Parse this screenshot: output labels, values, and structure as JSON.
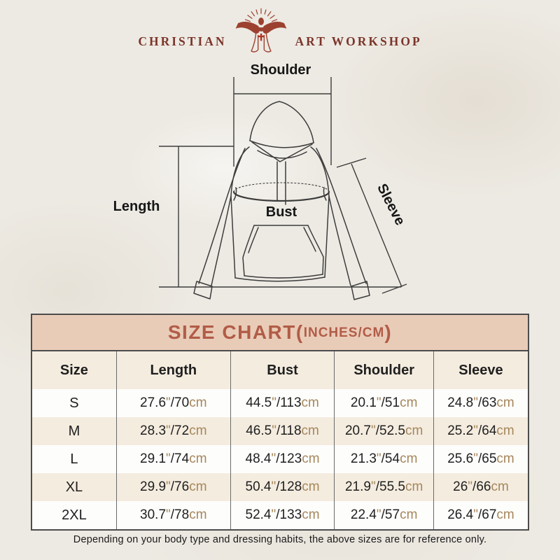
{
  "logo": {
    "left": "CHRISTIAN",
    "right": "ART WORKSHOP"
  },
  "diagram": {
    "shoulder_label": "Shoulder",
    "length_label": "Length",
    "bust_label": "Bust",
    "sleeve_label": "Sleeve"
  },
  "size_chart": {
    "title_main": "SIZE CHART(",
    "title_unit": "INCHES/CM",
    "title_close": ")",
    "columns": [
      "Size",
      "Length",
      "Bust",
      "Shoulder",
      "Sleeve"
    ],
    "unit_inch": "\"",
    "unit_cm": "cm",
    "rows": [
      {
        "size": "S",
        "length": [
          "27.6",
          "70"
        ],
        "bust": [
          "44.5",
          "113"
        ],
        "shoulder": [
          "20.1",
          "51"
        ],
        "sleeve": [
          "24.8",
          "63"
        ]
      },
      {
        "size": "M",
        "length": [
          "28.3",
          "72"
        ],
        "bust": [
          "46.5",
          "118"
        ],
        "shoulder": [
          "20.7",
          "52.5"
        ],
        "sleeve": [
          "25.2",
          "64"
        ]
      },
      {
        "size": "L",
        "length": [
          "29.1",
          "74"
        ],
        "bust": [
          "48.4",
          "123"
        ],
        "shoulder": [
          "21.3",
          "54"
        ],
        "sleeve": [
          "25.6",
          "65"
        ]
      },
      {
        "size": "XL",
        "length": [
          "29.9",
          "76"
        ],
        "bust": [
          "50.4",
          "128"
        ],
        "shoulder": [
          "21.9",
          "55.5"
        ],
        "sleeve": [
          "26",
          "66"
        ]
      },
      {
        "size": "2XL",
        "length": [
          "30.7",
          "78"
        ],
        "bust": [
          "52.4",
          "133"
        ],
        "shoulder": [
          "22.4",
          "57"
        ],
        "sleeve": [
          "26.4",
          "67"
        ]
      }
    ]
  },
  "footer": {
    "note": "Depending on your body type and dressing habits, the above sizes are for reference only."
  },
  "colors": {
    "background": "#edeae3",
    "logo_rust": "#9c4130",
    "logo_text": "#7c352a",
    "cross_red": "#b03425",
    "title_bg": "#e9ccb8",
    "title_text": "#b15c47",
    "row_alt_bg": "#f4ecdf",
    "accent_unit": "#a6875b",
    "line": "#3c3c3c"
  }
}
